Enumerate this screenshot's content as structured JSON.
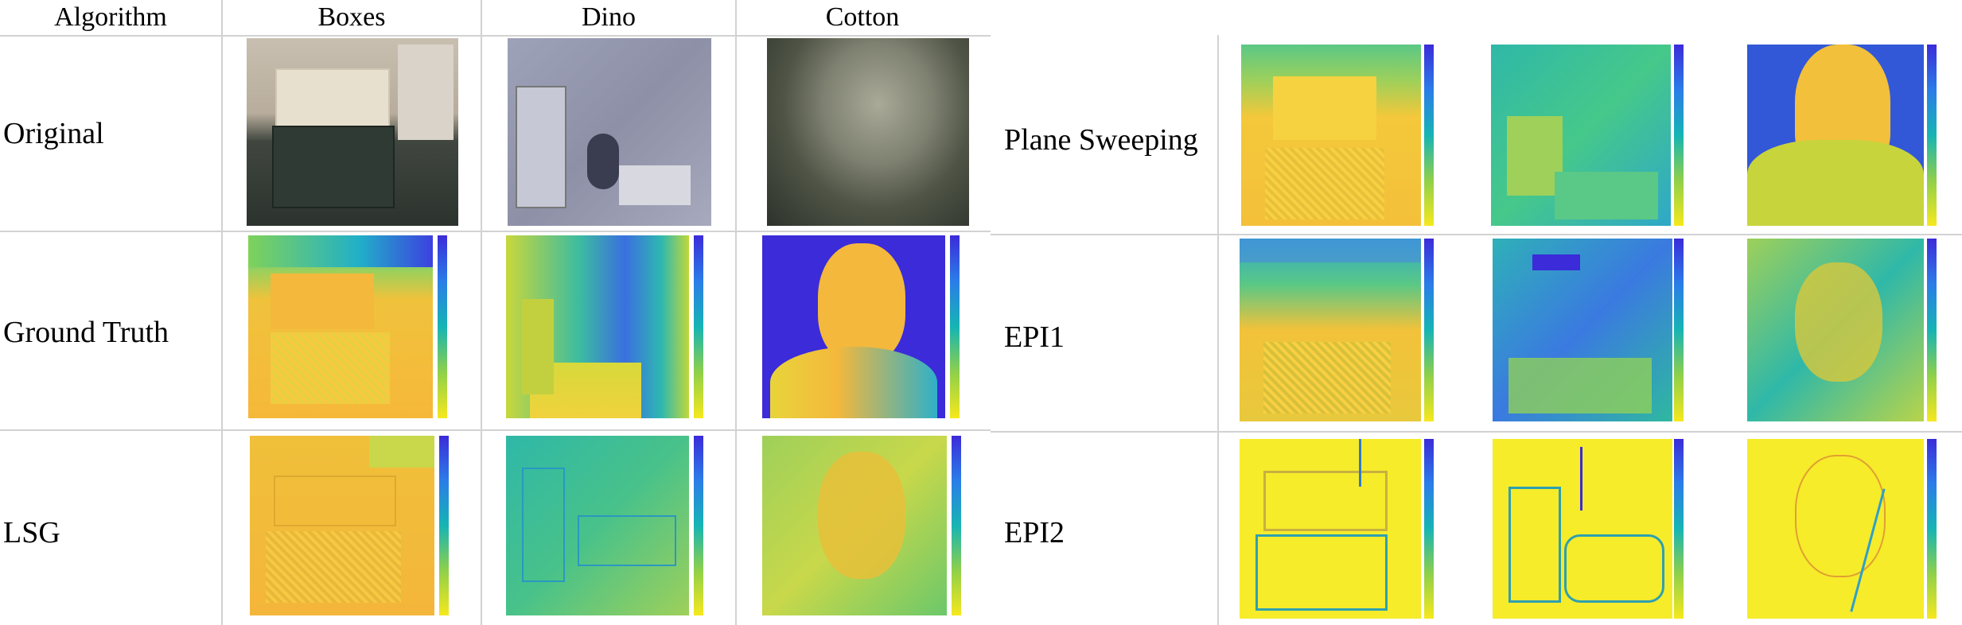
{
  "headers": {
    "algorithm": "Algorithm",
    "col1": "Boxes",
    "col2": "Dino",
    "col3": "Cotton"
  },
  "left_rows": {
    "original": "Original",
    "ground_truth": "Ground Truth",
    "lsg": "LSG"
  },
  "right_rows": {
    "plane_sweeping": "Plane Sweeping",
    "epi1": "EPI1",
    "epi2": "EPI2"
  }
}
